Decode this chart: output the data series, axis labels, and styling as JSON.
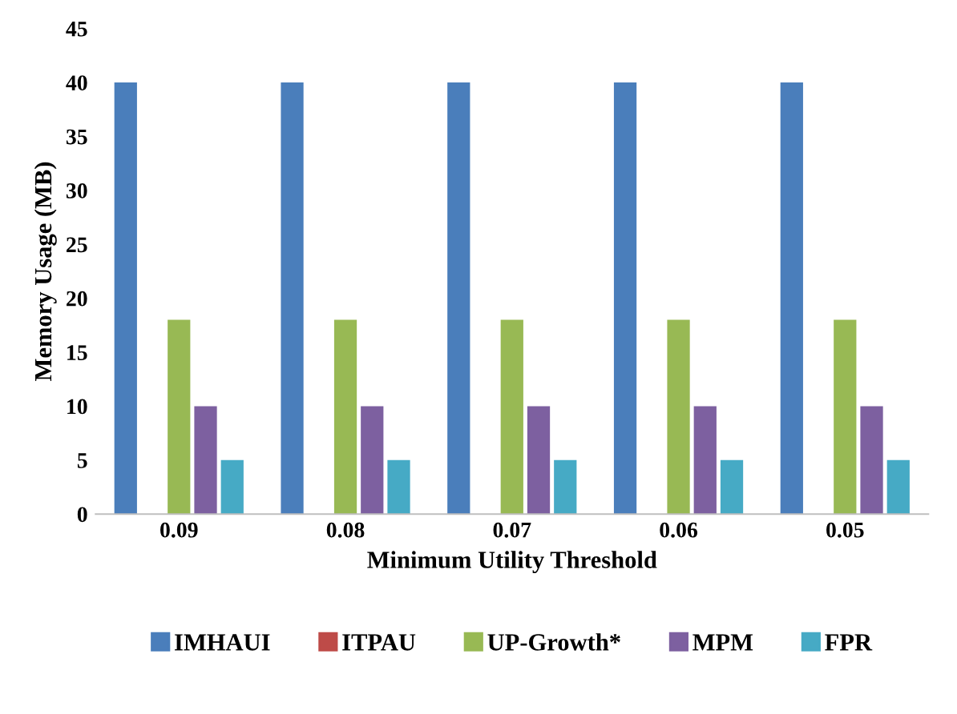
{
  "chart_data": {
    "type": "bar",
    "xlabel": "Minimum Utility Threshold",
    "ylabel": "Memory Usage (MB)",
    "categories": [
      "0.09",
      "0.08",
      "0.07",
      "0.06",
      "0.05"
    ],
    "series": [
      {
        "name": "IMHAUI",
        "color": "#4a7ebb",
        "values": [
          40,
          40,
          40,
          40,
          40
        ]
      },
      {
        "name": "ITPAU",
        "color": "#be4b48",
        "values": [
          0,
          0,
          0,
          0,
          0
        ]
      },
      {
        "name": "UP-Growth*",
        "color": "#98b954",
        "values": [
          18,
          18,
          18,
          18,
          18
        ]
      },
      {
        "name": "MPM",
        "color": "#7d60a0",
        "values": [
          10,
          10,
          10,
          10,
          10
        ]
      },
      {
        "name": "FPR",
        "color": "#46aac5",
        "values": [
          5,
          5,
          5,
          5,
          5
        ]
      }
    ],
    "ylim": [
      0,
      45
    ],
    "yticks": [
      0,
      5,
      10,
      15,
      20,
      25,
      30,
      35,
      40,
      45
    ],
    "grid": false,
    "legend": "bottom"
  }
}
